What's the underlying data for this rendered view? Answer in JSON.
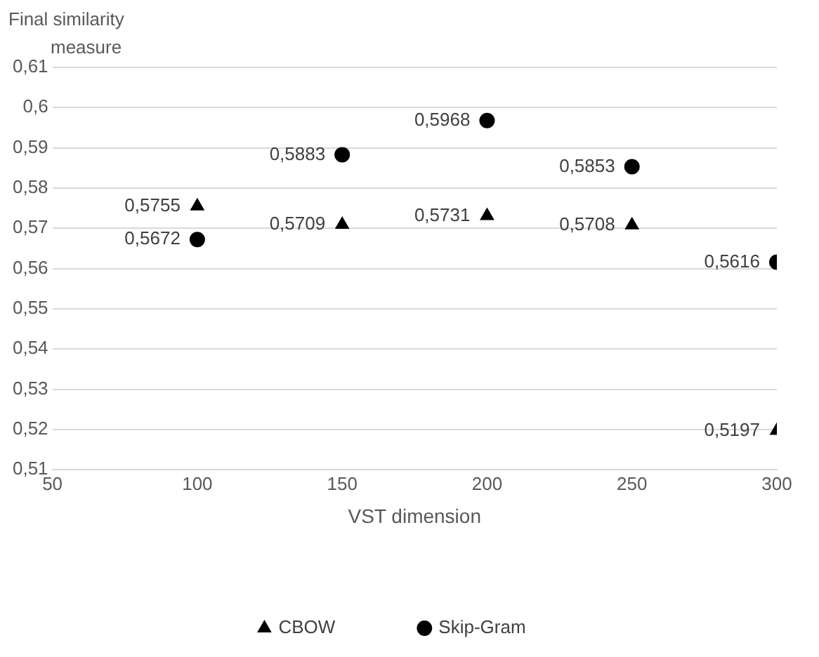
{
  "chart_data": {
    "type": "scatter",
    "ylabel": "Final similarity measure",
    "xlabel": "VST dimension",
    "xlim": [
      50,
      300
    ],
    "xticks": [
      50,
      100,
      150,
      200,
      250,
      300
    ],
    "ylim": [
      0.51,
      0.61
    ],
    "yticks": [
      {
        "value": 0.51,
        "label": "0,51"
      },
      {
        "value": 0.52,
        "label": "0,52"
      },
      {
        "value": 0.53,
        "label": "0,53"
      },
      {
        "value": 0.54,
        "label": "0,54"
      },
      {
        "value": 0.55,
        "label": "0,55"
      },
      {
        "value": 0.56,
        "label": "0,56"
      },
      {
        "value": 0.57,
        "label": "0,57"
      },
      {
        "value": 0.58,
        "label": "0,58"
      },
      {
        "value": 0.59,
        "label": "0,59"
      },
      {
        "value": 0.6,
        "label": "0,6"
      },
      {
        "value": 0.61,
        "label": "0,61"
      }
    ],
    "grid": "y",
    "legend": "bottom",
    "series": [
      {
        "name": "CBOW",
        "color": "#000000",
        "marker": "triangle",
        "x": [
          100,
          150,
          200,
          250,
          300
        ],
        "values": [
          0.5755,
          0.5709,
          0.5731,
          0.5708,
          0.5197
        ],
        "value_labels": [
          "0,5755",
          "0,5709",
          "0,5731",
          "0,5708",
          "0,5197"
        ]
      },
      {
        "name": "Skip-Gram",
        "color": "#000000",
        "marker": "circle",
        "x": [
          100,
          150,
          200,
          250,
          300
        ],
        "values": [
          0.5672,
          0.5883,
          0.5968,
          0.5853,
          0.5616
        ],
        "value_labels": [
          "0,5672",
          "0,5883",
          "0,5968",
          "0,5853",
          "0,5616"
        ]
      }
    ]
  }
}
